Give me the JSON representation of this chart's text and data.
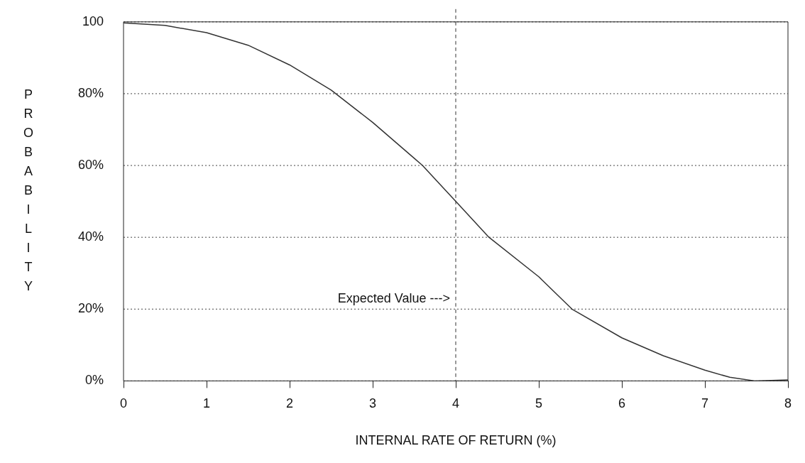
{
  "chart_data": {
    "type": "line",
    "xlabel": "INTERNAL RATE OF RETURN (%)",
    "ylabel": "PROBABILITY",
    "x": [
      0,
      0.5,
      1,
      1.5,
      2,
      2.5,
      3,
      3.5,
      3.6,
      4,
      4.4,
      5,
      5.4,
      6,
      6.5,
      7,
      7.3,
      7.6,
      8
    ],
    "series": [
      {
        "color": "#333333",
        "values": [
          99.7,
          99,
          97,
          93.5,
          88,
          81,
          72,
          62,
          60,
          50,
          40,
          29,
          20,
          12,
          7,
          3,
          1,
          0,
          0.3
        ]
      }
    ],
    "xlim": [
      0,
      8
    ],
    "xticks": [
      0,
      1,
      2,
      3,
      4,
      5,
      6,
      7,
      8
    ],
    "ylim": [
      0,
      100
    ],
    "yticks": [
      {
        "value": 0,
        "label": "0%"
      },
      {
        "value": 20,
        "label": "20%"
      },
      {
        "value": 40,
        "label": "40%"
      },
      {
        "value": 60,
        "label": "60%"
      },
      {
        "value": 80,
        "label": "80%"
      },
      {
        "value": 100,
        "label": "100"
      }
    ],
    "grid": "y",
    "legend": false,
    "marker": "none",
    "line_style": "solid",
    "ref_lines": [
      {
        "axis": "x",
        "value": 4,
        "line_style": "dashed",
        "color": "#333333"
      }
    ],
    "annotations": [
      {
        "text": "Expected Value --->",
        "x": 4,
        "y": 21
      }
    ]
  }
}
